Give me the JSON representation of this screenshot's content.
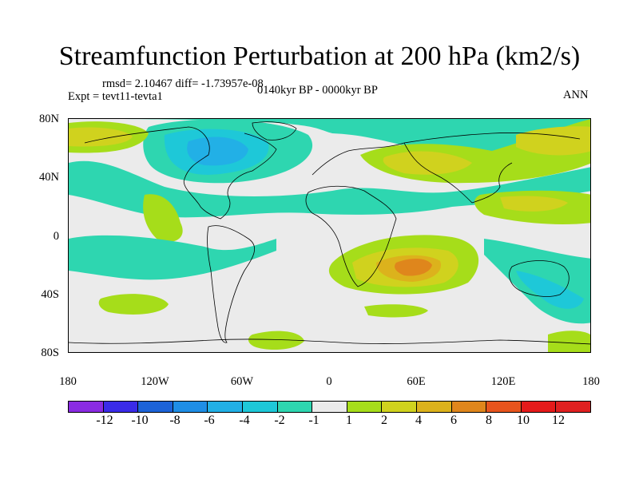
{
  "title": "Streamfunction Perturbation at 200 hPa (km2/s)",
  "stats_line": "rmsd= 2.10467 diff= -1.73957e-08",
  "expt_label": "Expt = tevt11-tevta1",
  "period_label": "0140kyr BP - 0000kyr BP",
  "season_label": "ANN",
  "y_ticks": [
    "80N",
    "40N",
    "0",
    "40S",
    "80S"
  ],
  "x_ticks": [
    "180",
    "120W",
    "60W",
    "0",
    "60E",
    "120E",
    "180"
  ],
  "colorbar": {
    "labels": [
      "-12",
      "-10",
      "-8",
      "-6",
      "-4",
      "-2",
      "-1",
      "1",
      "2",
      "4",
      "6",
      "8",
      "10",
      "12"
    ],
    "colors": [
      "#8a2be2",
      "#3a2be8",
      "#1d63d8",
      "#1f8ee6",
      "#22b0e6",
      "#1ec8d8",
      "#2ed6b0",
      "#ebebeb",
      "#a6dd1a",
      "#d0d21e",
      "#dcb21c",
      "#df861c",
      "#e7541d",
      "#e51a1a"
    ]
  },
  "map_colors": {
    "neutral": "#ebebeb",
    "pos1": "#a6dd1a",
    "pos2": "#d0d21e",
    "pos3": "#dcb21c",
    "pos4": "#df861c",
    "neg1": "#2ed6b0",
    "neg2": "#1ec8d8",
    "neg3": "#22b0e6",
    "neg4": "#1f8ee6"
  }
}
